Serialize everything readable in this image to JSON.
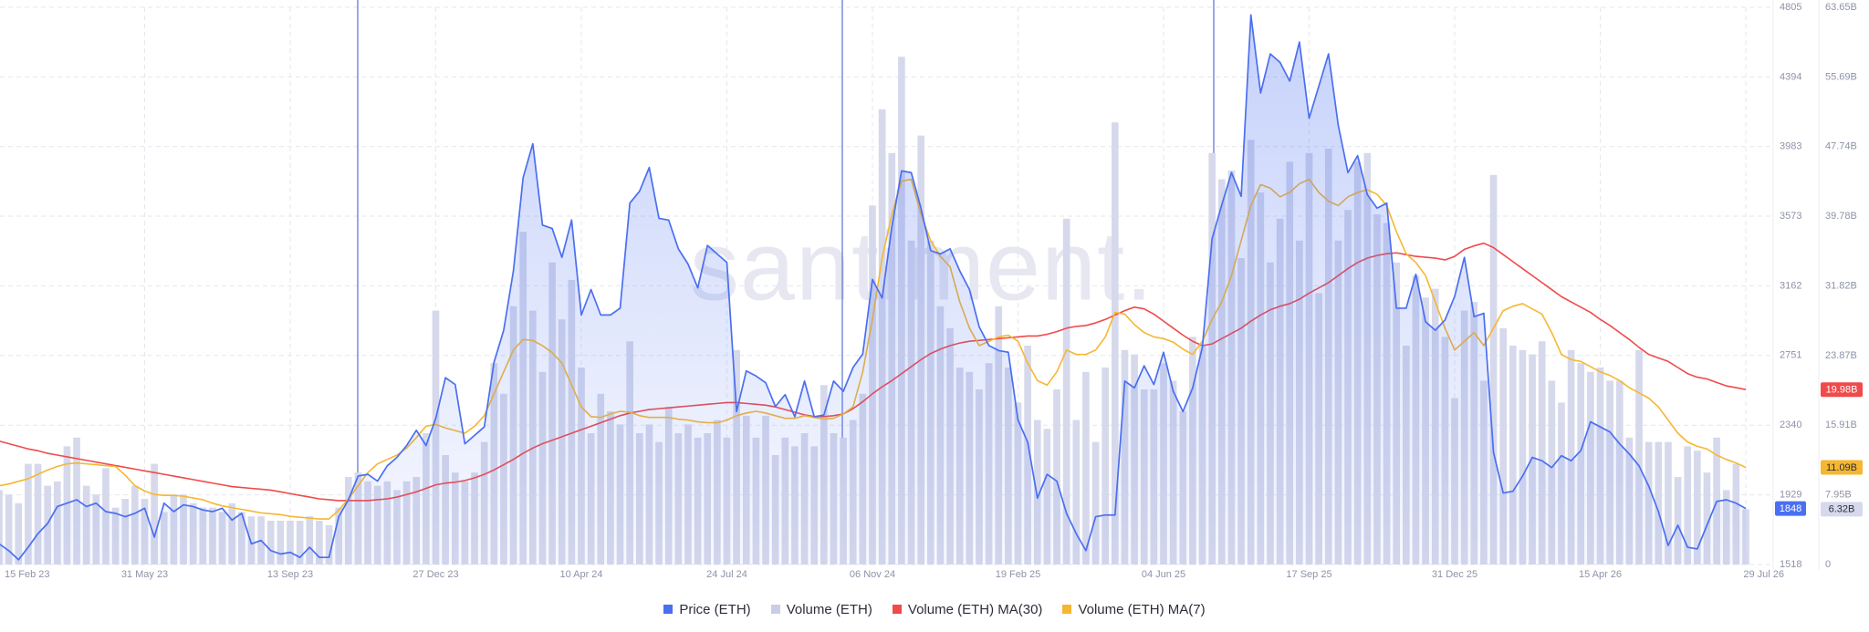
{
  "chart_data": {
    "type": "combo",
    "watermark": "santiment.",
    "grid": true,
    "legend": "bottom",
    "categories": [
      "15 Feb 23",
      null,
      null,
      null,
      null,
      null,
      null,
      null,
      null,
      null,
      null,
      null,
      null,
      null,
      null,
      "31 May 23",
      null,
      null,
      null,
      null,
      null,
      null,
      null,
      null,
      null,
      null,
      null,
      null,
      null,
      null,
      "13 Sep 23",
      null,
      null,
      null,
      null,
      null,
      null,
      null,
      null,
      null,
      null,
      null,
      null,
      null,
      null,
      "27 Dec 23",
      null,
      null,
      null,
      null,
      null,
      null,
      null,
      null,
      null,
      null,
      null,
      null,
      null,
      null,
      "10 Apr 24",
      null,
      null,
      null,
      null,
      null,
      null,
      null,
      null,
      null,
      null,
      null,
      null,
      null,
      null,
      "24 Jul 24",
      null,
      null,
      null,
      null,
      null,
      null,
      null,
      null,
      null,
      null,
      null,
      null,
      null,
      null,
      "06 Nov 24",
      null,
      null,
      null,
      null,
      null,
      null,
      null,
      null,
      null,
      null,
      null,
      null,
      null,
      null,
      "19 Feb 25",
      null,
      null,
      null,
      null,
      null,
      null,
      null,
      null,
      null,
      null,
      null,
      null,
      null,
      null,
      "04 Jun 25",
      null,
      null,
      null,
      null,
      null,
      null,
      null,
      null,
      null,
      null,
      null,
      null,
      null,
      null,
      "17 Sep 25",
      null,
      null,
      null,
      null,
      null,
      null,
      null,
      null,
      null,
      null,
      null,
      null,
      null,
      null,
      "31 Dec 25",
      null,
      null,
      null,
      null,
      null,
      null,
      null,
      null,
      null,
      null,
      null,
      null,
      null,
      null,
      "15 Apr 26",
      null,
      null,
      null,
      null,
      null,
      null,
      null,
      null,
      null,
      null,
      null,
      null,
      null,
      null,
      "29 Jul 26"
    ],
    "ylim": [
      1518,
      4805
    ],
    "yticks": [
      1518,
      1929,
      2340,
      2751,
      3162,
      3573,
      3983,
      4394,
      4805
    ],
    "y2lim": [
      0,
      63.65
    ],
    "y2ticks": [
      0,
      {
        "value": 7.95,
        "label": "7.95B"
      },
      {
        "value": 15.91,
        "label": "15.91B"
      },
      {
        "value": 23.87,
        "label": "23.87B"
      },
      {
        "value": 31.82,
        "label": "31.82B"
      },
      {
        "value": 39.78,
        "label": "39.78B"
      },
      {
        "value": 47.74,
        "label": "47.74B"
      },
      {
        "value": 55.69,
        "label": "55.69B"
      },
      {
        "value": 63.65,
        "label": "63.65B"
      }
    ],
    "series": [
      {
        "name": "Volume (ETH)",
        "type": "bar",
        "axis": "y2",
        "color": "#d6d9ec",
        "last_label": "6.32B",
        "values": [
          8.5,
          8,
          7,
          11.5,
          11.5,
          9,
          9.5,
          13.5,
          14.5,
          9,
          8,
          11,
          6.5,
          7.5,
          9,
          7.5,
          11.5,
          6,
          8,
          8,
          7,
          6.5,
          6.5,
          6,
          7,
          6,
          5.5,
          5.5,
          5,
          5,
          5,
          5,
          5.5,
          5,
          4.5,
          6.5,
          10,
          10.5,
          9.5,
          9,
          9.5,
          8.5,
          9.5,
          10,
          15,
          29,
          12.5,
          10.5,
          9.5,
          10.5,
          14,
          23,
          19.5,
          29.5,
          38,
          29,
          22,
          34.5,
          28,
          32.5,
          22.5,
          15,
          19.5,
          17.5,
          16,
          25.5,
          15,
          16,
          14,
          18,
          15,
          16,
          14.5,
          15,
          16.5,
          14.5,
          24.5,
          17,
          14.5,
          17,
          12.5,
          14.5,
          13.5,
          15,
          13.5,
          20.5,
          15,
          14.5,
          16.5,
          19.5,
          41,
          52,
          47,
          58,
          37,
          49,
          37,
          29.5,
          27,
          22.5,
          22,
          20,
          23,
          29.5,
          22.5,
          18.5,
          25,
          16.5,
          15.5,
          20,
          39.5,
          16.5,
          22,
          14,
          22.5,
          50.5,
          24.5,
          24,
          20,
          20,
          23,
          21,
          17.5,
          26,
          25,
          47,
          44,
          45,
          35,
          48.5,
          42.5,
          34.5,
          39.5,
          46,
          37,
          47,
          31,
          47.5,
          37,
          40.5,
          46,
          47,
          40,
          39,
          34.5,
          25,
          33,
          30.5,
          31.5,
          26,
          19,
          29,
          30,
          21,
          44.5,
          27,
          25,
          24.5,
          24,
          25.5,
          21,
          18.5,
          24.5,
          23,
          22,
          22.5,
          21,
          21,
          14.5,
          24.5,
          14,
          14,
          14,
          10,
          13.5,
          13,
          10.5,
          14.5,
          8.5,
          11.5,
          6.32
        ]
      },
      {
        "name": "Volume (ETH) MA(30)",
        "type": "line",
        "axis": "y2",
        "color": "#f04a4a",
        "last_label": "19.98B",
        "values": [
          14.1,
          13.8,
          13.5,
          13.2,
          13.0,
          12.7,
          12.5,
          12.3,
          12.1,
          11.9,
          11.7,
          11.5,
          11.3,
          11.1,
          10.9,
          10.7,
          10.5,
          10.3,
          10.1,
          9.9,
          9.7,
          9.5,
          9.3,
          9.1,
          8.9,
          8.8,
          8.7,
          8.6,
          8.5,
          8.3,
          8.1,
          7.9,
          7.7,
          7.5,
          7.4,
          7.3,
          7.3,
          7.3,
          7.3,
          7.4,
          7.5,
          7.7,
          8.0,
          8.3,
          8.7,
          9.1,
          9.3,
          9.4,
          9.6,
          9.9,
          10.3,
          10.8,
          11.4,
          12.0,
          12.7,
          13.3,
          13.8,
          14.2,
          14.6,
          15.0,
          15.4,
          15.8,
          16.2,
          16.6,
          17.0,
          17.3,
          17.5,
          17.7,
          17.8,
          17.9,
          18.0,
          18.1,
          18.2,
          18.3,
          18.4,
          18.5,
          18.5,
          18.4,
          18.3,
          18.2,
          18.0,
          17.7,
          17.4,
          17.1,
          16.9,
          16.9,
          17.0,
          17.2,
          17.8,
          18.6,
          19.5,
          20.3,
          21.0,
          21.8,
          22.6,
          23.4,
          24.1,
          24.6,
          25.0,
          25.3,
          25.5,
          25.6,
          25.7,
          25.8,
          25.9,
          26.0,
          26.1,
          26.1,
          26.3,
          26.6,
          27.0,
          27.2,
          27.3,
          27.6,
          28.0,
          28.5,
          29.0,
          29.4,
          29.2,
          28.6,
          27.8,
          27.0,
          26.2,
          25.5,
          25.0,
          25.2,
          25.8,
          26.4,
          27.0,
          27.8,
          28.5,
          29.1,
          29.5,
          29.8,
          30.3,
          31.0,
          31.6,
          32.2,
          33.0,
          33.8,
          34.5,
          35.0,
          35.3,
          35.5,
          35.6,
          35.4,
          35.2,
          35.1,
          35.0,
          34.8,
          35.2,
          36.0,
          36.4,
          36.7,
          36.2,
          35.4,
          34.6,
          33.8,
          33.0,
          32.2,
          31.4,
          30.6,
          30.0,
          29.4,
          28.8,
          28.0,
          27.3,
          26.5,
          25.7,
          24.8,
          24.0,
          23.6,
          23.2,
          22.5,
          21.8,
          21.4,
          21.2,
          20.8,
          20.4,
          20.2,
          19.98
        ]
      },
      {
        "name": "Volume (ETH) MA(7)",
        "type": "line",
        "axis": "y2",
        "color": "#f5b731",
        "last_label": "11.09B",
        "values": [
          9.0,
          9.2,
          9.5,
          9.8,
          10.3,
          10.8,
          11.2,
          11.5,
          11.6,
          11.5,
          11.4,
          11.3,
          11.2,
          10.2,
          9.0,
          8.4,
          8.0,
          7.9,
          7.9,
          7.8,
          7.6,
          7.4,
          7.0,
          6.7,
          6.5,
          6.3,
          6.1,
          5.9,
          5.8,
          5.7,
          5.5,
          5.4,
          5.3,
          5.2,
          5.2,
          6.2,
          7.5,
          9.0,
          10.5,
          11.5,
          12.0,
          12.5,
          13.3,
          14.5,
          15.8,
          16.0,
          15.6,
          15.3,
          15.0,
          15.8,
          17.0,
          19.5,
          22.0,
          24.5,
          25.7,
          25.6,
          25.0,
          24.2,
          23.0,
          20.5,
          18.0,
          16.9,
          16.8,
          17.2,
          17.5,
          17.4,
          17.0,
          16.8,
          16.8,
          16.8,
          16.6,
          16.5,
          16.3,
          16.2,
          16.2,
          16.5,
          17.0,
          17.3,
          17.5,
          17.3,
          17.0,
          16.7,
          16.7,
          17.0,
          16.8,
          16.6,
          16.7,
          17.2,
          18.0,
          22.0,
          28.0,
          35.0,
          40.0,
          43.8,
          44.0,
          40.0,
          37.0,
          35.2,
          34.0,
          30.0,
          27.0,
          25.0,
          25.5,
          26.0,
          26.2,
          25.5,
          23.0,
          21.0,
          20.5,
          22.0,
          24.5,
          24.0,
          24.0,
          24.5,
          26.0,
          28.8,
          28.6,
          27.4,
          26.5,
          26.0,
          25.8,
          25.4,
          24.6,
          24.0,
          25.5,
          28.0,
          30.0,
          33.0,
          37.0,
          41.0,
          43.4,
          43.0,
          42.0,
          42.5,
          43.5,
          44.0,
          42.5,
          41.5,
          41.0,
          42.0,
          42.5,
          42.8,
          42.3,
          41.0,
          38.0,
          35.5,
          34.5,
          33.0,
          30.0,
          27.0,
          24.5,
          25.5,
          26.5,
          25.0,
          27.0,
          29.0,
          29.5,
          29.8,
          29.2,
          28.6,
          26.5,
          24.0,
          23.4,
          23.2,
          22.6,
          22.0,
          21.6,
          21.0,
          20.2,
          19.6,
          19.0,
          18.0,
          16.5,
          15.0,
          14.0,
          13.5,
          13.2,
          12.5,
          12.0,
          11.6,
          11.09
        ]
      },
      {
        "name": "Price (ETH)",
        "type": "line",
        "area": true,
        "color": "#4a6ff0",
        "values": [
          1640,
          1600,
          1546,
          1620,
          1700,
          1760,
          1860,
          1880,
          1900,
          1860,
          1880,
          1830,
          1820,
          1800,
          1820,
          1850,
          1680,
          1880,
          1830,
          1870,
          1860,
          1840,
          1830,
          1850,
          1780,
          1820,
          1640,
          1660,
          1600,
          1580,
          1590,
          1560,
          1620,
          1560,
          1560,
          1800,
          1900,
          2040,
          2050,
          2010,
          2100,
          2150,
          2220,
          2310,
          2220,
          2380,
          2620,
          2580,
          2230,
          2280,
          2330,
          2710,
          2900,
          3250,
          3800,
          4000,
          3520,
          3500,
          3330,
          3550,
          2990,
          3140,
          2990,
          2990,
          3030,
          3650,
          3720,
          3860,
          3560,
          3550,
          3380,
          3290,
          3150,
          3400,
          3350,
          3300,
          2420,
          2660,
          2630,
          2590,
          2450,
          2520,
          2390,
          2600,
          2390,
          2400,
          2600,
          2540,
          2680,
          2760,
          3200,
          3090,
          3510,
          3840,
          3830,
          3620,
          3370,
          3350,
          3380,
          3250,
          3140,
          2920,
          2810,
          2780,
          2770,
          2370,
          2240,
          1910,
          2050,
          2010,
          1820,
          1700,
          1600,
          1800,
          1810,
          1810,
          2600,
          2560,
          2690,
          2580,
          2770,
          2540,
          2420,
          2560,
          2800,
          3440,
          3640,
          3830,
          3690,
          4760,
          4300,
          4530,
          4480,
          4370,
          4600,
          4150,
          4340,
          4530,
          4110,
          3830,
          3930,
          3700,
          3620,
          3650,
          3030,
          3030,
          3230,
          2950,
          2900,
          2960,
          3100,
          3330,
          2980,
          3000,
          2180,
          1940,
          1950,
          2040,
          2150,
          2130,
          2090,
          2160,
          2130,
          2190,
          2360,
          2330,
          2300,
          2230,
          2170,
          2100,
          1980,
          1830,
          1630,
          1750,
          1620,
          1610,
          1750,
          1890,
          1900,
          1880,
          1848
        ]
      }
    ]
  }
}
